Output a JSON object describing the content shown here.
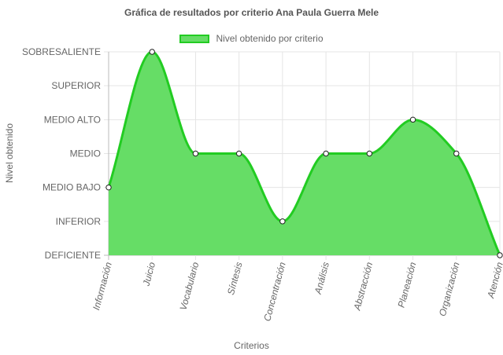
{
  "chart_data": {
    "type": "area",
    "title": "Gráfica de resultados por criterio Ana Paula Guerra Mele",
    "xlabel": "Criterios",
    "ylabel": "Nivel obtenido",
    "y_levels": [
      "DEFICIENTE",
      "INFERIOR",
      "MEDIO BAJO",
      "MEDIO",
      "MEDIO ALTO",
      "SUPERIOR",
      "SOBRESALIENTE"
    ],
    "categories": [
      "Información",
      "Juicio",
      "Vocabulario",
      "Síntesis",
      "Concentración",
      "Análisis",
      "Abstracción",
      "Planeación",
      "Organización",
      "Atención"
    ],
    "series": [
      {
        "name": "Nivel obtenido por criterio",
        "values": [
          "MEDIO BAJO",
          "SOBRESALIENTE",
          "MEDIO",
          "MEDIO",
          "INFERIOR",
          "MEDIO",
          "MEDIO",
          "MEDIO ALTO",
          "MEDIO",
          "DEFICIENTE"
        ]
      }
    ],
    "grid": true,
    "legend_position": "top",
    "colors": {
      "fill": "#66dd66",
      "line": "#22cc22",
      "grid": "#e5e5e5",
      "axis": "#bbbbbb"
    }
  }
}
